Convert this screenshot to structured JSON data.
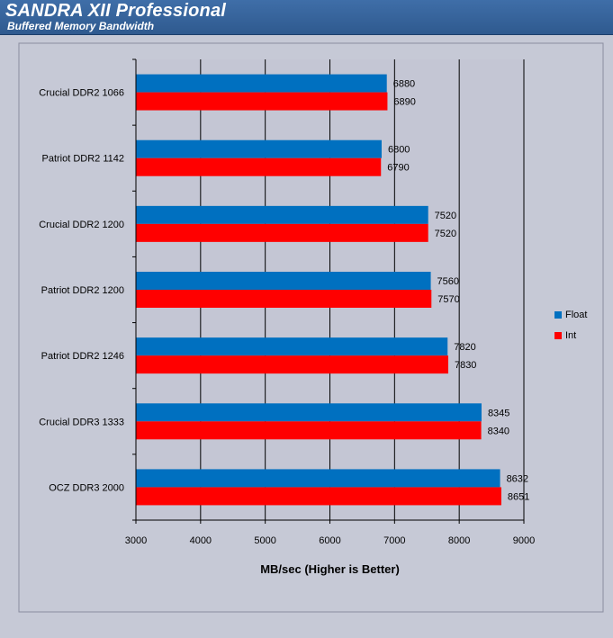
{
  "header": {
    "title": "SANDRA XII Professional",
    "subtitle": "Buffered Memory Bandwidth"
  },
  "colors": {
    "header_bg": "#3367a3",
    "outer_bg": "#c6c9d6",
    "plot_bg": "#c4c6d4",
    "float": "#0070c0",
    "int": "#ff0000",
    "grid": "#000000"
  },
  "chart_data": {
    "type": "bar",
    "orientation": "horizontal",
    "title": "SANDRA XII Professional",
    "subtitle": "Buffered Memory Bandwidth",
    "xlabel": "MB/sec (Higher is Better)",
    "ylabel": "",
    "xlim": [
      3000,
      9000
    ],
    "xticks": [
      3000,
      4000,
      5000,
      6000,
      7000,
      8000,
      9000
    ],
    "grid": true,
    "legend_position": "right",
    "categories": [
      "Crucial DDR2 1066",
      "Patriot DDR2 1142",
      "Crucial DDR2 1200",
      "Patriot DDR2 1200",
      "Patriot DDR2 1246",
      "Crucial DDR3 1333",
      "OCZ DDR3 2000"
    ],
    "series": [
      {
        "name": "Float",
        "color": "#0070c0",
        "values": [
          6880,
          6800,
          7520,
          7560,
          7820,
          8345,
          8632
        ]
      },
      {
        "name": "Int",
        "color": "#ff0000",
        "values": [
          6890,
          6790,
          7520,
          7570,
          7830,
          8340,
          8651
        ]
      }
    ]
  }
}
